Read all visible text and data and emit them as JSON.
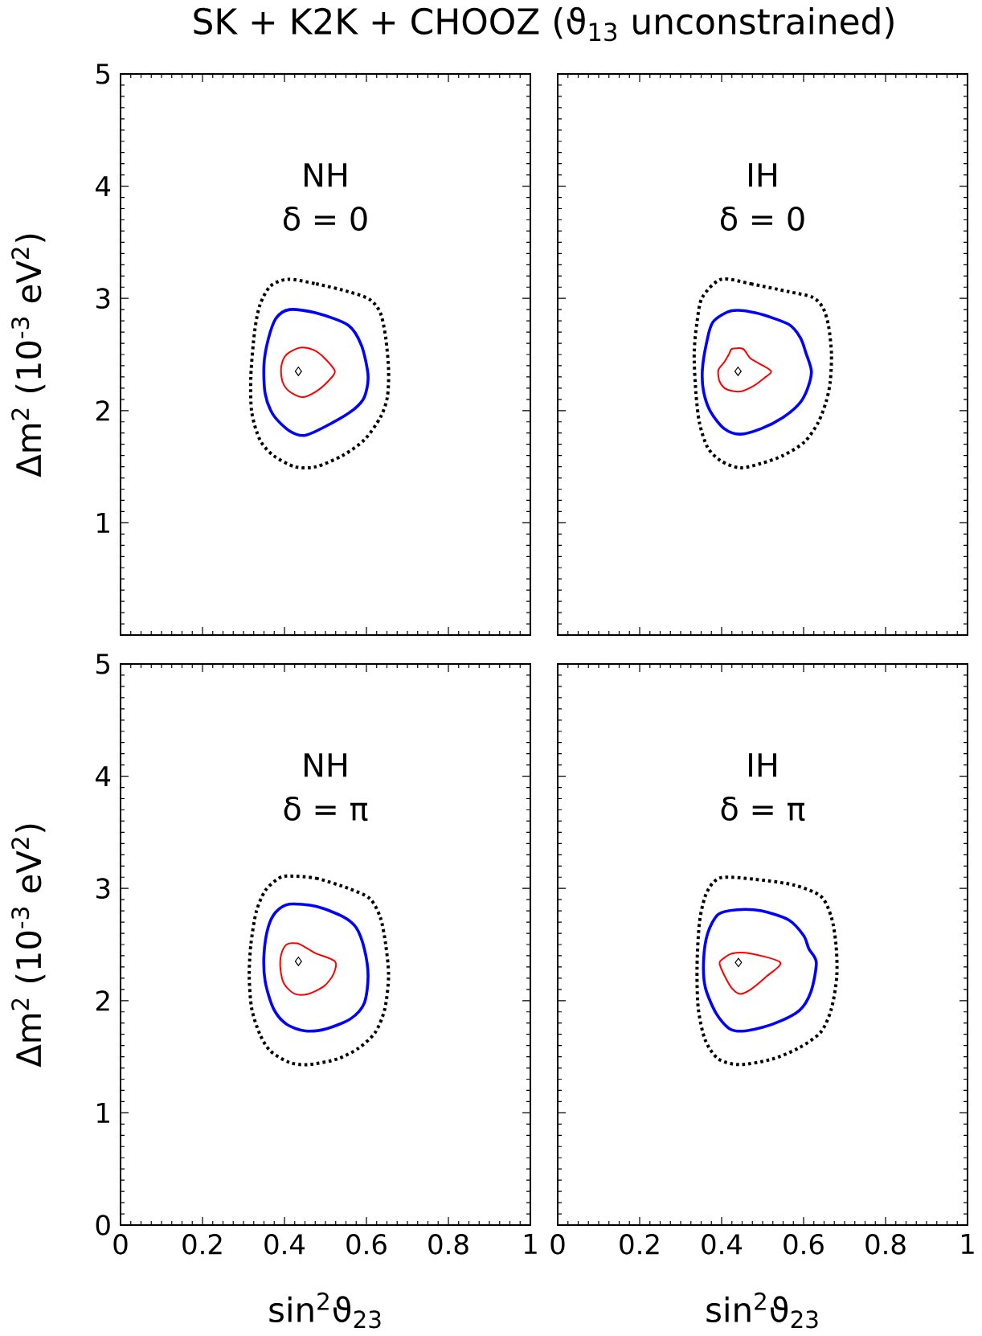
{
  "chart_data": [
    {
      "type": "scatter",
      "title": "SK + K2K + CHOOZ (ϑ$_{13}$ unconstrained)",
      "ylabel": "Δm$^{2}$ (10$^{-3}$ eV$^{2}$)",
      "annotations": [
        "NH",
        "δ = 0"
      ],
      "xlim": [
        0,
        1
      ],
      "ylim": [
        0,
        5
      ],
      "xticks": [
        0,
        0.2,
        0.4,
        0.6,
        0.8,
        1
      ],
      "yticks": [
        {
          "value": 0,
          "label": null
        },
        1,
        2,
        3,
        4,
        5
      ],
      "tick_labels": "y",
      "series": [
        {
          "color": "#000000",
          "marker": "diamond",
          "x": [
            0.434
          ],
          "values": [
            2.35
          ]
        }
      ]
    },
    {
      "type": "scatter",
      "annotations": [
        "IH",
        "δ = 0"
      ],
      "xlim": [
        0,
        1
      ],
      "ylim": [
        0,
        5
      ],
      "xticks": [
        0,
        0.2,
        0.4,
        0.6,
        0.8,
        1
      ],
      "yticks": [
        0,
        1,
        2,
        3,
        4,
        5
      ],
      "tick_labels": false,
      "series": [
        {
          "color": "#000000",
          "marker": "diamond",
          "x": [
            0.44
          ],
          "values": [
            2.35
          ]
        }
      ]
    },
    {
      "type": "scatter",
      "xlabel": "sin$^{2}$ϑ$_{23}$",
      "ylabel": "Δm$^{2}$ (10$^{-3}$ eV$^{2}$)",
      "annotations": [
        "NH",
        "δ = π"
      ],
      "xlim": [
        0,
        1
      ],
      "ylim": [
        0,
        5
      ],
      "xticks": [
        0,
        0.2,
        0.4,
        0.6,
        0.8,
        1
      ],
      "yticks": [
        0,
        1,
        2,
        3,
        4,
        5
      ],
      "series": [
        {
          "color": "#000000",
          "marker": "diamond",
          "x": [
            0.434
          ],
          "values": [
            2.35
          ]
        }
      ]
    },
    {
      "type": "scatter",
      "xlabel": "sin$^{2}$ϑ$_{23}$",
      "annotations": [
        "IH",
        "δ = π"
      ],
      "xlim": [
        0,
        1
      ],
      "ylim": [
        0,
        5
      ],
      "xticks": [
        0,
        0.2,
        0.4,
        0.6,
        0.8,
        1
      ],
      "yticks": [
        0,
        1,
        2,
        3,
        4,
        5
      ],
      "tick_labels": "x",
      "series": [
        {
          "color": "#000000",
          "marker": "diamond",
          "x": [
            0.441
          ],
          "values": [
            2.34
          ]
        }
      ]
    }
  ]
}
